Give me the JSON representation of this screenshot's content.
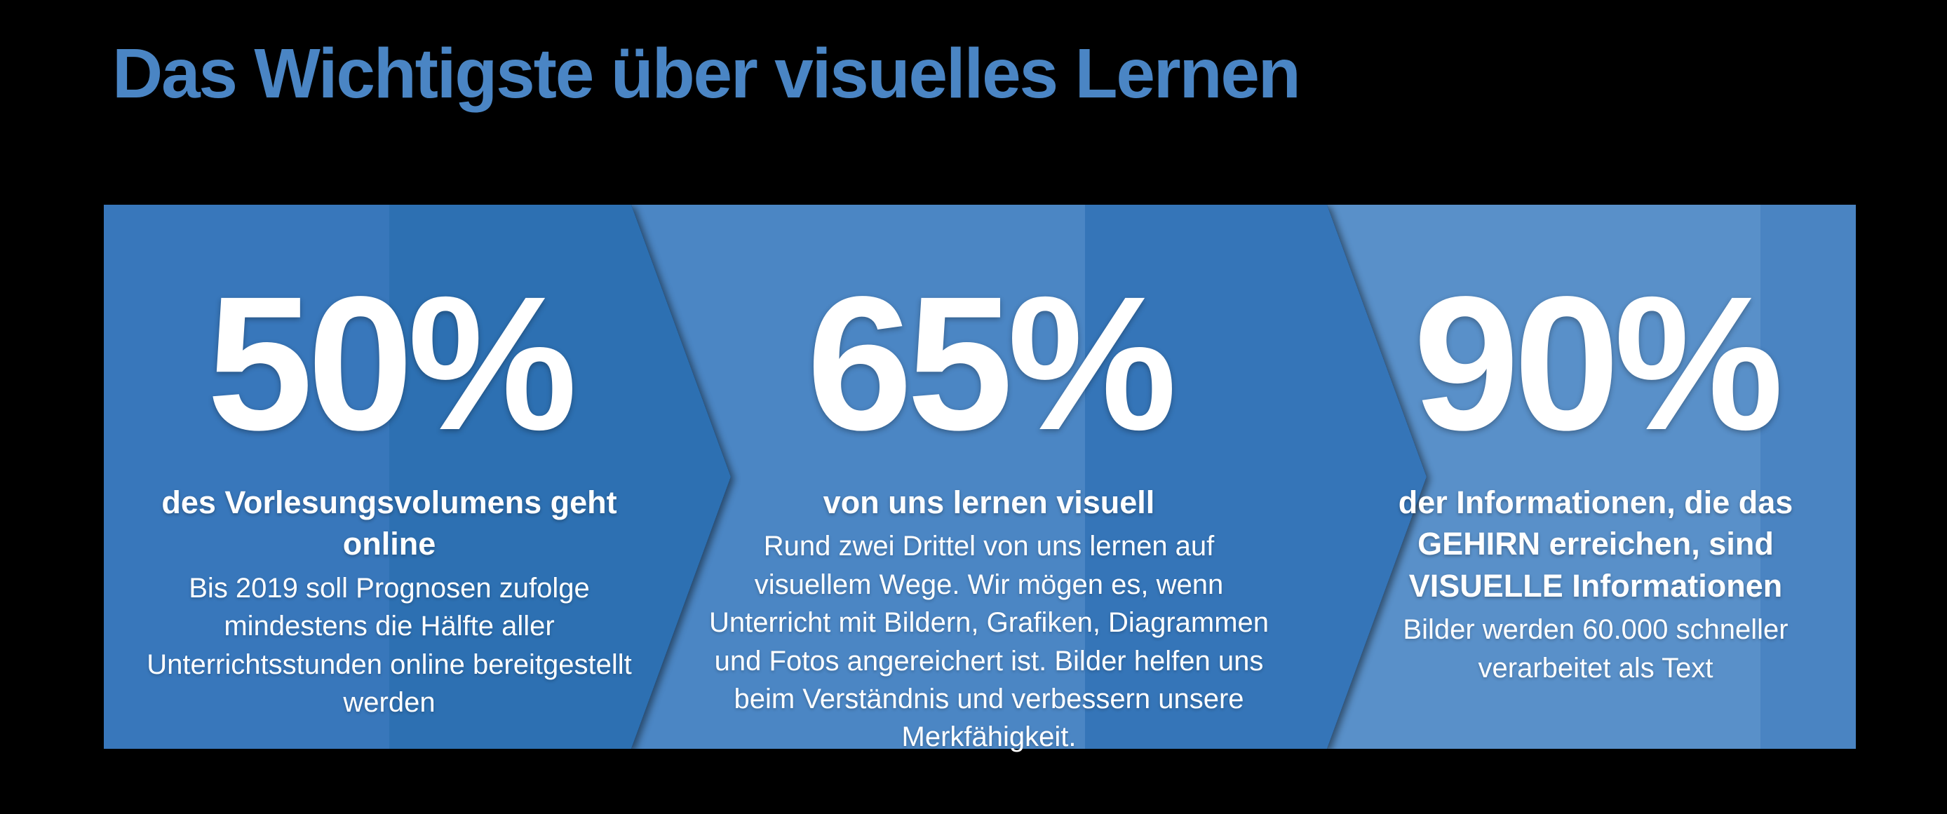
{
  "background_color": "#000000",
  "title": {
    "text": "Das Wichtigste über visuelles Lernen",
    "color": "#4a85c4"
  },
  "panels": [
    {
      "value": "50%",
      "heading": "des Vorlesungsvolumens geht online",
      "description": "Bis 2019 soll Prognosen zufolge mindestens die Hälfte aller Unterrichtsstunden online bereitgestellt werden",
      "color_light": "#3877bb",
      "color_dark": "#2d70b2"
    },
    {
      "value": "65%",
      "heading": "von uns lernen visuell",
      "description": "Rund zwei Drittel von uns lernen auf visuellem Wege. Wir mögen es, wenn Unterricht mit Bildern, Grafiken, Diagrammen und Fotos angereichert ist. Bilder helfen uns beim Verständnis und verbessern unsere Merkfähigkeit.",
      "color_light": "#4b86c4",
      "color_dark": "#3575b8"
    },
    {
      "value": "90%",
      "heading": "der Informationen, die das GEHIRN erreichen, sind VISUELLE Informationen",
      "description": "Bilder werden 60.000 schneller verarbeitet als Text",
      "color_light": "#5990c9",
      "color_dark": "#4a84c2"
    }
  ],
  "text_color": "#ffffff"
}
